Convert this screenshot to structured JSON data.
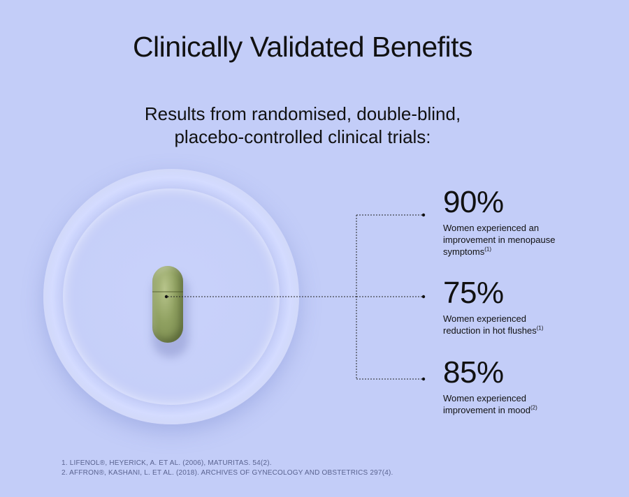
{
  "title": "Clinically Validated Benefits",
  "subtitle": {
    "line1": "Results from randomised, double-blind,",
    "line2": "placebo-controlled clinical trials:"
  },
  "stats": [
    {
      "value": "90%",
      "description": "Women experienced an improvement in menopause symptoms",
      "ref": "(1)"
    },
    {
      "value": "75%",
      "description": "Women experienced reduction in hot flushes",
      "ref": "(1)"
    },
    {
      "value": "85%",
      "description": "Women experienced improvement in mood",
      "ref": "(2)"
    }
  ],
  "footnotes": [
    "1. LIFENOL®, HEYERICK, A. ET AL. (2006), MATURITAS. 54(2).",
    "2. AFFRON®, KASHANI, L. ET AL. (2018). ARCHIVES OF GYNECOLOGY AND OBSTETRICS 297(4)."
  ],
  "colors": {
    "background": "#c3cdf8",
    "text": "#111111",
    "capsule": "#8fa060",
    "footnote": "#5a6390"
  }
}
